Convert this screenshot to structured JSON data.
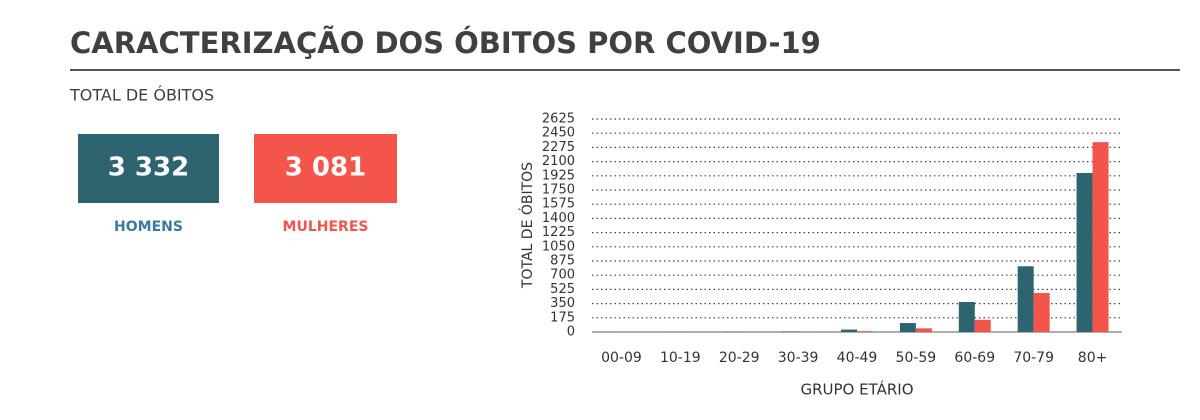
{
  "header": {
    "title": "CARACTERIZAÇÃO DOS ÓBITOS POR COVID-19",
    "subtitle": "TOTAL DE ÓBITOS"
  },
  "kpis": [
    {
      "value": "3 332"
    },
    {
      "value": "3 081"
    }
  ],
  "chart_data": {
    "type": "bar",
    "xlabel": "GRUPO ETÁRIO",
    "ylabel": "TOTAL DE ÓBITOS",
    "categories": [
      "00-09",
      "10-19",
      "20-29",
      "30-39",
      "40-49",
      "50-59",
      "60-69",
      "70-79",
      "80+"
    ],
    "series": [
      {
        "name": "HOMENS",
        "color": "#2e6470",
        "values": [
          0,
          0,
          2,
          5,
          30,
          110,
          370,
          810,
          1960
        ]
      },
      {
        "name": "MULHERES",
        "color": "#f4554a",
        "values": [
          0,
          0,
          1,
          2,
          10,
          45,
          150,
          480,
          2340
        ]
      }
    ],
    "ylim": [
      0,
      2625
    ],
    "yticks": [
      0,
      175,
      350,
      525,
      700,
      875,
      1050,
      1225,
      1400,
      1575,
      1750,
      1925,
      2100,
      2275,
      2450,
      2625
    ],
    "grid": true
  }
}
